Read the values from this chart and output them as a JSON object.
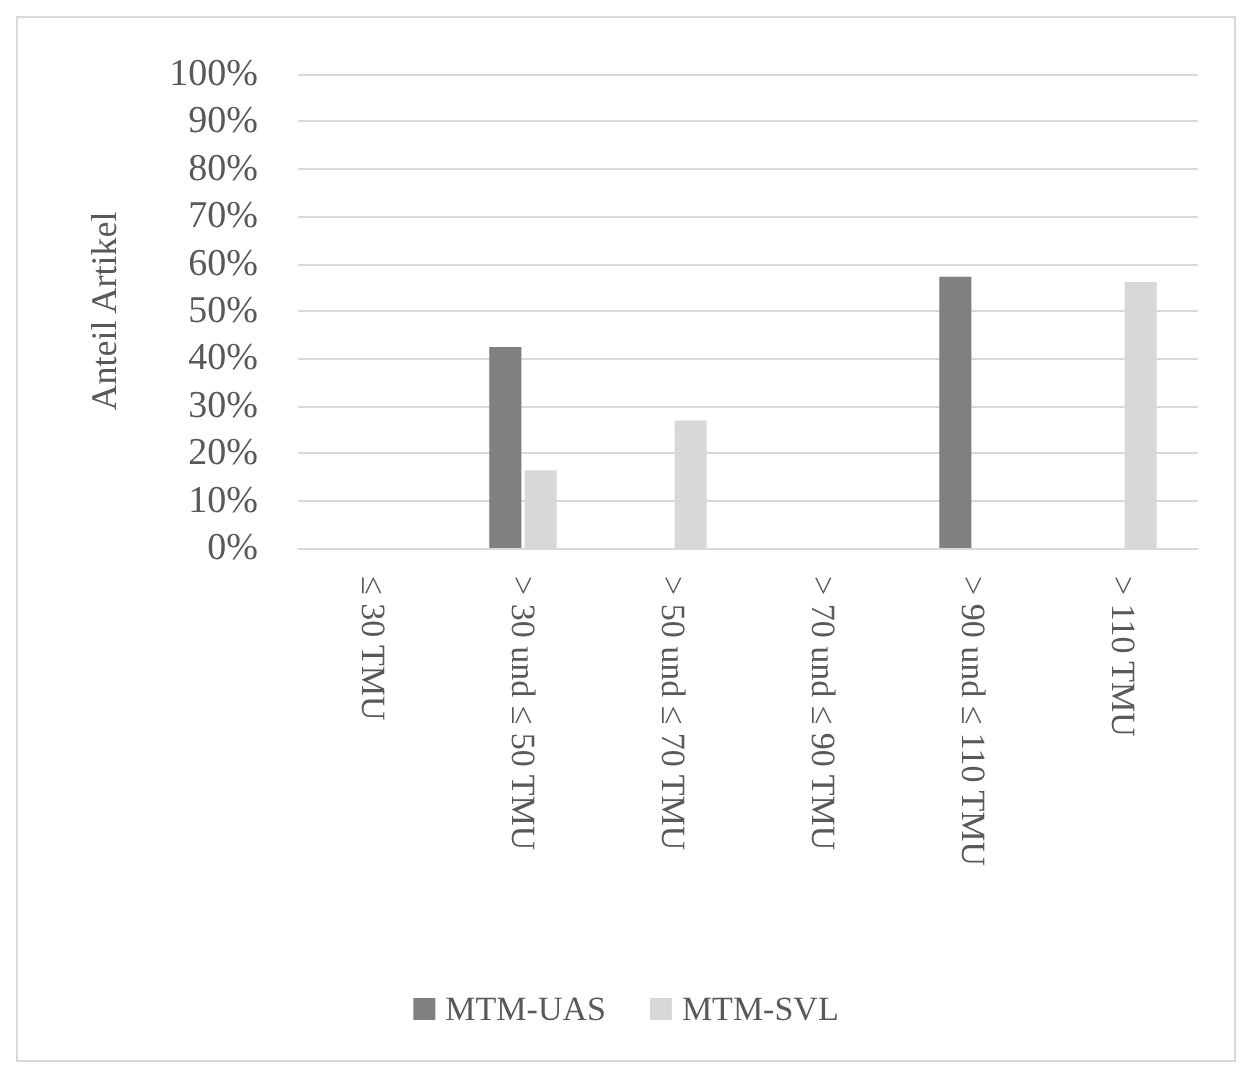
{
  "chart_data": {
    "type": "bar",
    "ylabel": "Anteil Artikel",
    "categories": [
      "≤ 30 TMU",
      "> 30 und ≤ 50 TMU",
      "> 50 und ≤ 70 TMU",
      "> 70 und ≤ 90 TMU",
      "> 90 und ≤ 110 TMU",
      "> 110 TMU"
    ],
    "series": [
      {
        "name": "MTM-UAS",
        "color": "#808083",
        "values": [
          0,
          42.4,
          0,
          0,
          57.2,
          0
        ]
      },
      {
        "name": "MTM-SVL",
        "color": "#d8d8da",
        "values": [
          0,
          16.4,
          26.9,
          0,
          0,
          56.1
        ]
      }
    ],
    "ylim": [
      0,
      100
    ],
    "yticks": [
      {
        "value": 0,
        "label": "0%"
      },
      {
        "value": 10,
        "label": "10%"
      },
      {
        "value": 20,
        "label": "20%"
      },
      {
        "value": 30,
        "label": "30%"
      },
      {
        "value": 40,
        "label": "40%"
      },
      {
        "value": 50,
        "label": "50%"
      },
      {
        "value": 60,
        "label": "60%"
      },
      {
        "value": 70,
        "label": "70%"
      },
      {
        "value": 80,
        "label": "80%"
      },
      {
        "value": 90,
        "label": "90%"
      },
      {
        "value": 100,
        "label": "100%"
      }
    ],
    "grid": "y",
    "legend": "bottom"
  }
}
